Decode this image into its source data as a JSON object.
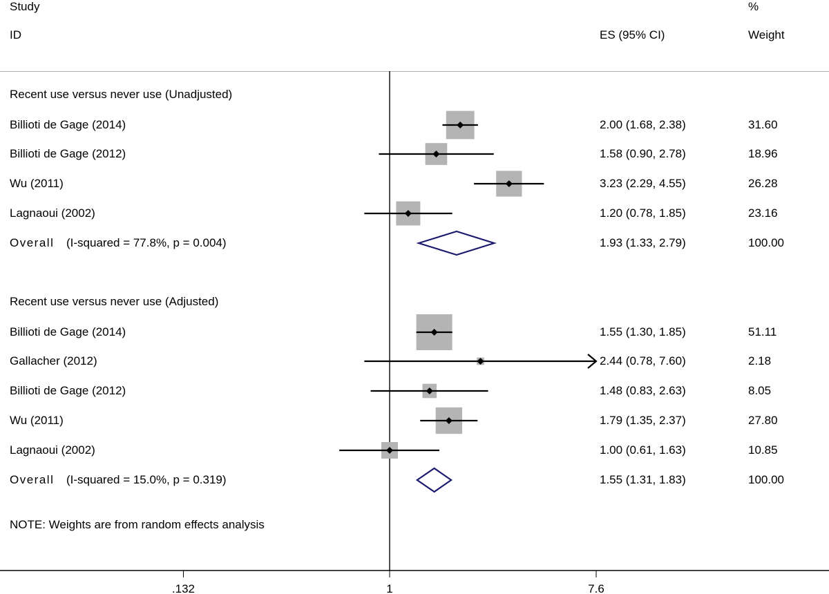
{
  "header": {
    "col1_line1": "Study",
    "col1_line2": "ID",
    "es_label": "ES (95% CI)",
    "weight_line1": "%",
    "weight_line2": "Weight"
  },
  "colors": {
    "box": "#b4b4b4",
    "line": "#000000",
    "diamond": "#1a1a6e"
  },
  "chart_data": {
    "type": "forest",
    "x_scale": "log",
    "x_ticks": [
      0.132,
      1,
      7.6
    ],
    "x_tick_labels": [
      ".132",
      "1",
      "7.6"
    ],
    "reference_line": 1,
    "groups": [
      {
        "title": "Recent use versus never use (Unadjusted)",
        "studies": [
          {
            "label": "Billioti de Gage (2014)",
            "es": 2.0,
            "lo": 1.68,
            "hi": 2.38,
            "ci_text": "2.00 (1.68, 2.38)",
            "weight": 31.6,
            "weight_text": "31.60"
          },
          {
            "label": "Billioti de Gage (2012)",
            "es": 1.58,
            "lo": 0.9,
            "hi": 2.78,
            "ci_text": "1.58 (0.90, 2.78)",
            "weight": 18.96,
            "weight_text": "18.96"
          },
          {
            "label": "Wu (2011)",
            "es": 3.23,
            "lo": 2.29,
            "hi": 4.55,
            "ci_text": "3.23 (2.29, 4.55)",
            "weight": 26.28,
            "weight_text": "26.28"
          },
          {
            "label": "Lagnaoui (2002)",
            "es": 1.2,
            "lo": 0.78,
            "hi": 1.85,
            "ci_text": "1.20 (0.78, 1.85)",
            "weight": 23.16,
            "weight_text": "23.16"
          }
        ],
        "overall": {
          "word": "Overall",
          "stats": "(I-squared = 77.8%, p = 0.004)",
          "es": 1.93,
          "lo": 1.33,
          "hi": 2.79,
          "ci_text": "1.93 (1.33, 2.79)",
          "weight_text": "100.00"
        }
      },
      {
        "title": "Recent use versus never use (Adjusted)",
        "studies": [
          {
            "label": "Billioti de Gage (2014)",
            "es": 1.55,
            "lo": 1.3,
            "hi": 1.85,
            "ci_text": "1.55 (1.30, 1.85)",
            "weight": 51.11,
            "weight_text": "51.11"
          },
          {
            "label": "Gallacher (2012)",
            "es": 2.44,
            "lo": 0.78,
            "hi": 7.6,
            "ci_text": "2.44 (0.78, 7.60)",
            "weight": 2.18,
            "weight_text": "2.18",
            "arrow_right": true
          },
          {
            "label": "Billioti de Gage (2012)",
            "es": 1.48,
            "lo": 0.83,
            "hi": 2.63,
            "ci_text": "1.48 (0.83, 2.63)",
            "weight": 8.05,
            "weight_text": "8.05"
          },
          {
            "label": "Wu (2011)",
            "es": 1.79,
            "lo": 1.35,
            "hi": 2.37,
            "ci_text": "1.79 (1.35, 2.37)",
            "weight": 27.8,
            "weight_text": "27.80"
          },
          {
            "label": "Lagnaoui (2002)",
            "es": 1.0,
            "lo": 0.61,
            "hi": 1.63,
            "ci_text": "1.00 (0.61, 1.63)",
            "weight": 10.85,
            "weight_text": "10.85"
          }
        ],
        "overall": {
          "word": "Overall",
          "stats": "(I-squared = 15.0%, p = 0.319)",
          "es": 1.55,
          "lo": 1.31,
          "hi": 1.83,
          "ci_text": "1.55 (1.31, 1.83)",
          "weight_text": "100.00"
        }
      }
    ],
    "note": "NOTE: Weights are from random effects analysis"
  }
}
